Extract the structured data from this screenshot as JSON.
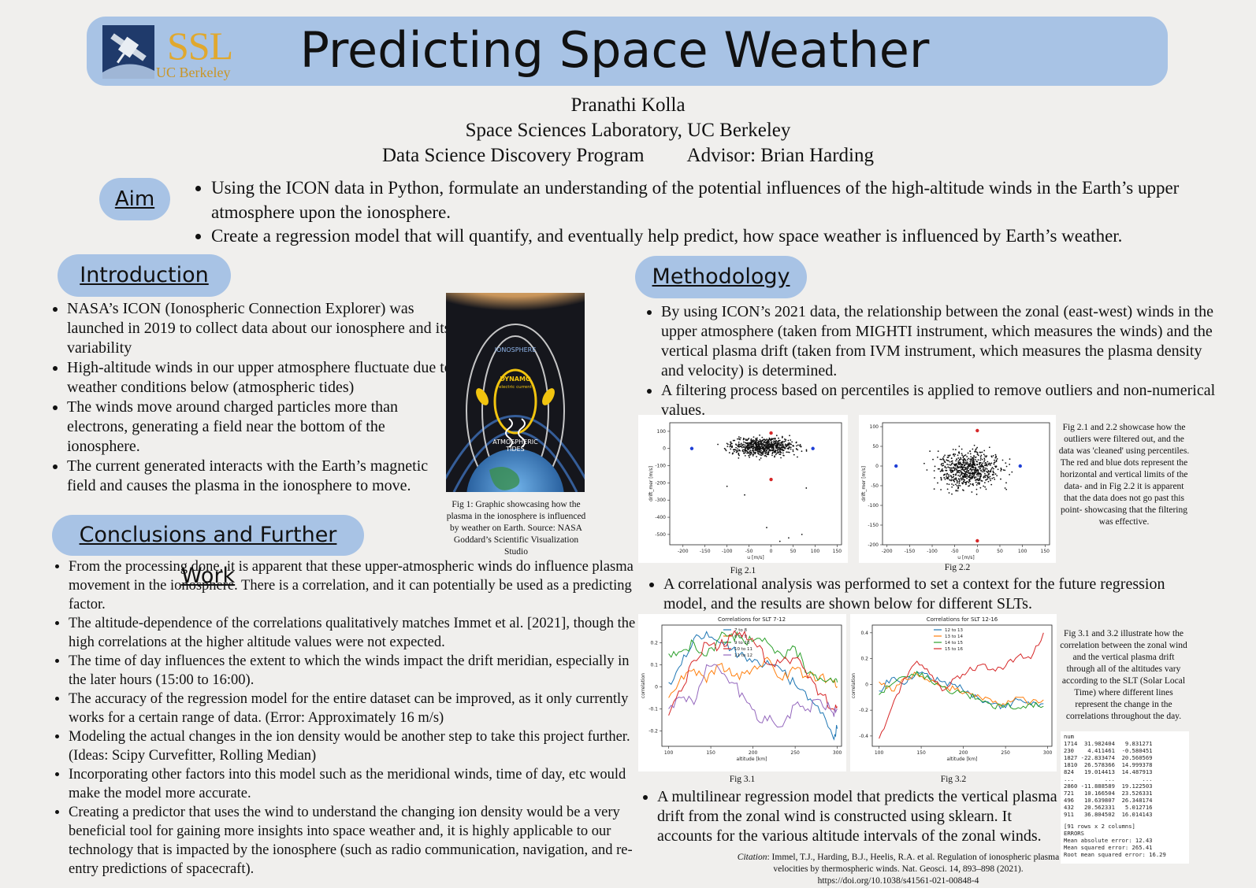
{
  "header": {
    "title": "Predicting Space Weather",
    "logo_ssl": "SSL",
    "logo_ucb": "UC Berkeley",
    "author": "Pranathi Kolla",
    "affiliation": "Space Sciences Laboratory, UC Berkeley",
    "program": "Data Science Discovery Program",
    "advisor": "Advisor: Brian Harding"
  },
  "aim": {
    "heading": "Aim",
    "items": [
      "Using the ICON data in Python, formulate an understanding of the potential influences of the high-altitude winds in the Earth’s upper atmosphere upon the ionosphere.",
      "Create a regression model that will quantify, and eventually help predict, how space weather is influenced by Earth’s weather."
    ]
  },
  "introduction": {
    "heading": "Introduction",
    "items": [
      "NASA’s ICON (Ionospheric Connection Explorer) was launched in 2019 to collect data about our ionosphere and its variability",
      "High-altitude winds in our upper atmosphere fluctuate due to weather conditions below (atmospheric tides)",
      "The winds move around charged particles more than electrons, generating a field near the bottom of the ionosphere.",
      "The current generated interacts with the Earth’s magnetic field and causes the plasma in the ionosphere to move."
    ],
    "figure_labels": [
      "IONOSPHERE",
      "DYNAMO",
      "electric current",
      "ATMOSPHERIC",
      "TIDES"
    ],
    "figure_caption": "Fig 1: Graphic showcasing how the plasma in the ionosphere is influenced by weather on Earth. Source: NASA Goddard’s Scientific Visualization Studio"
  },
  "conclusions": {
    "heading": "Conclusions and Further Work",
    "items": [
      "From the processing done, it is apparent that these upper-atmospheric winds do influence plasma movement in the ionosphere. There is a correlation, and it can potentially be used as a predicting factor.",
      "The altitude-dependence of the correlations qualitatively matches Immet et al. [2021], though the high correlations at the higher altitude values were not expected.",
      "The time of day influences the extent to which the winds impact the drift meridian, especially in the later hours (15:00 to 16:00).",
      "The accuracy of the regression model for the entire dataset can be improved, as it only currently works for a certain range of data. (Error: Approximately 16 m/s)",
      "Modeling the actual changes in the ion density would be another step to take this project further. (Ideas: Scipy Curvefitter, Rolling Median)",
      "Incorporating other factors into this model such as the meridional winds, time of day, etc would make the model more accurate.",
      "Creating a predictor that uses the wind to understand the changing ion density would be a very beneficial tool for gaining more insights into space weather and, it is highly applicable to our technology that is impacted by the ionosphere (such as radio communication, navigation, and re-entry predictions of spacecraft)."
    ]
  },
  "methodology": {
    "heading": "Methodology",
    "items1": [
      "By using ICON’s 2021 data, the relationship between the zonal (east-west) winds in the upper atmosphere (taken from MIGHTI instrument, which measures the winds) and the vertical plasma drift (taken from IVM instrument, which measures the plasma density and velocity) is determined.",
      "A filtering process based on percentiles is applied to remove outliers and non-numerical values."
    ],
    "fig21_caption": "Fig 2.1",
    "fig22_caption": "Fig 2.2",
    "fig2_note": "Fig 2.1 and 2.2 showcase how the outliers were filtered out, and the data was 'cleaned' using percentiles. The red and blue dots represent the horizontal and vertical limits of the data- and in Fig 2.2 it is apparent that the data does not go past this point- showcasing that the filtering was effective.",
    "item2": "A correlational analysis was performed to set a context for the future regression model, and the results are shown below for different SLTs.",
    "fig31_caption": "Fig 3.1",
    "fig32_caption": "Fig 3.2",
    "fig3_note": "Fig 3.1 and 3.2 illustrate how the correlation between the zonal wind and the vertical plasma drift through all of the altitudes vary according to the SLT (Solar Local Time) where different lines represent the change in the correlations throughout the day.",
    "item3": "A multilinear regression model that predicts the vertical plasma drift from the zonal wind is constructed using sklearn. It accounts for the various altitude intervals of the zonal winds.",
    "table_header": "num",
    "table_rows": [
      "1714  31.982404   9.831271",
      "230    4.411461  -0.580451",
      "1827 -22.833474  20.560569",
      "1810  26.578366  14.999378",
      "824   19.014413  14.487913",
      "...         ...        ...",
      "2860 -11.888589  19.122503",
      "721   10.166504  23.526331",
      "496   10.639807  26.348174",
      "432   20.562331   5.012716",
      "911   36.804502  16.014143"
    ],
    "table_shape": "[91 rows x 2 columns]",
    "errors_label": "ERRORS",
    "errors": [
      "Mean absolute error: 12.43",
      "Mean squared error: 265.41",
      "Root mean squared error: 16.29"
    ]
  },
  "citation": {
    "label": "Citation",
    "text": ":  Immel, T.J., Harding, B.J., Heelis, R.A. et al. Regulation of ionospheric plasma velocities by thermospheric winds. Nat. Geosci. 14, 893–898 (2021).",
    "doi": "https://doi.org/10.1038/s41561-021-00848-4"
  },
  "chart_data": [
    {
      "id": "fig2.1",
      "type": "scatter",
      "title": "",
      "xlabel": "u [m/s]",
      "ylabel": "drift_mer [m/s]",
      "xlim": [
        -230,
        160
      ],
      "ylim": [
        -560,
        150
      ],
      "xticks": [
        -200,
        -150,
        -100,
        -50,
        0,
        50,
        100,
        150
      ],
      "yticks": [
        100,
        0,
        -100,
        -200,
        -300,
        -400,
        -500
      ],
      "cloud": {
        "x_center": -20,
        "x_spread": 70,
        "y_center": 10,
        "y_spread": 50,
        "count": 700
      },
      "outliers_sparse": [
        [
          -60,
          -270
        ],
        [
          -10,
          -460
        ],
        [
          20,
          -540
        ],
        [
          40,
          -520
        ],
        [
          70,
          -500
        ],
        [
          -100,
          -220
        ],
        [
          80,
          -230
        ]
      ],
      "red_points": [
        [
          0,
          90
        ],
        [
          0,
          -180
        ]
      ],
      "blue_points": [
        [
          -180,
          0
        ],
        [
          95,
          0
        ]
      ]
    },
    {
      "id": "fig2.2",
      "type": "scatter",
      "title": "",
      "xlabel": "u [m/s]",
      "ylabel": "drift_mer [m/s]",
      "xlim": [
        -210,
        160
      ],
      "ylim": [
        -200,
        110
      ],
      "xticks": [
        -200,
        -150,
        -100,
        -50,
        0,
        50,
        100,
        150
      ],
      "yticks": [
        100,
        50,
        0,
        -50,
        -100,
        -150,
        -200
      ],
      "cloud": {
        "x_center": -20,
        "x_spread": 65,
        "y_center": -10,
        "y_spread": 45,
        "count": 700
      },
      "red_points": [
        [
          0,
          90
        ],
        [
          0,
          -190
        ]
      ],
      "blue_points": [
        [
          -180,
          0
        ],
        [
          95,
          0
        ]
      ]
    },
    {
      "id": "fig3.1",
      "type": "line",
      "title": "Correlations for SLT 7-12",
      "xlabel": "altitude [km]",
      "ylabel": "correlation",
      "xlim": [
        92,
        305
      ],
      "ylim": [
        -0.27,
        0.28
      ],
      "xticks": [
        100,
        150,
        200,
        250,
        300
      ],
      "yticks": [
        -0.2,
        -0.1,
        0.0,
        0.1,
        0.2
      ],
      "x": [
        100,
        115,
        130,
        145,
        160,
        175,
        190,
        205,
        220,
        235,
        250,
        265,
        280,
        295,
        300
      ],
      "series": [
        {
          "name": "7 to 8",
          "color": "#1f77b4",
          "values": [
            0.02,
            0.1,
            0.22,
            0.25,
            0.2,
            0.17,
            0.14,
            0.12,
            0.1,
            0.07,
            0.01,
            -0.06,
            -0.12,
            -0.23,
            -0.19
          ]
        },
        {
          "name": "8 to 9",
          "color": "#ff7f0e",
          "values": [
            -0.05,
            0.05,
            0.08,
            0.02,
            0.1,
            0.05,
            0.06,
            0.08,
            0.12,
            0.03,
            0.08,
            0.04,
            0.05,
            0.02,
            0.0
          ]
        },
        {
          "name": "9 to 10",
          "color": "#2ca02c",
          "values": [
            0.15,
            0.16,
            0.2,
            0.14,
            0.22,
            0.24,
            0.2,
            0.22,
            0.19,
            0.14,
            0.18,
            0.06,
            0.04,
            0.02,
            0.02
          ]
        },
        {
          "name": "10 to 11",
          "color": "#d62728",
          "values": [
            -0.13,
            -0.02,
            0.12,
            0.2,
            0.18,
            0.23,
            0.25,
            0.18,
            0.1,
            0.12,
            0.13,
            0.04,
            -0.03,
            -0.1,
            -0.09
          ]
        },
        {
          "name": "11 to 12",
          "color": "#9467bd",
          "values": [
            -0.1,
            -0.05,
            -0.08,
            0.1,
            0.08,
            0.02,
            -0.05,
            -0.15,
            -0.13,
            -0.18,
            -0.08,
            -0.1,
            -0.06,
            -0.12,
            -0.1
          ]
        }
      ]
    },
    {
      "id": "fig3.2",
      "type": "line",
      "title": "Correlations for SLT 12-16",
      "xlabel": "altitude [km]",
      "ylabel": "correlation",
      "xlim": [
        92,
        305
      ],
      "ylim": [
        -0.48,
        0.46
      ],
      "xticks": [
        100,
        150,
        200,
        250,
        300
      ],
      "yticks": [
        -0.4,
        -0.2,
        0.0,
        0.2,
        0.4
      ],
      "x": [
        100,
        115,
        130,
        145,
        160,
        175,
        190,
        205,
        220,
        235,
        250,
        265,
        280,
        295
      ],
      "series": [
        {
          "name": "12 to 13",
          "color": "#1f77b4",
          "values": [
            -0.05,
            0.05,
            0.0,
            0.1,
            0.05,
            0.02,
            0.0,
            -0.05,
            -0.12,
            -0.15,
            -0.18,
            -0.12,
            -0.16,
            -0.15
          ]
        },
        {
          "name": "13 to 14",
          "color": "#ff7f0e",
          "values": [
            0.02,
            -0.05,
            0.05,
            0.08,
            0.02,
            -0.02,
            -0.04,
            -0.06,
            -0.1,
            -0.14,
            -0.16,
            -0.1,
            -0.14,
            -0.12
          ]
        },
        {
          "name": "14 to 15",
          "color": "#2ca02c",
          "values": [
            -0.08,
            0.0,
            0.06,
            0.1,
            0.04,
            -0.02,
            -0.06,
            -0.08,
            -0.12,
            -0.18,
            -0.16,
            -0.18,
            -0.15,
            -0.17
          ]
        },
        {
          "name": "15 to 16",
          "color": "#d62728",
          "values": [
            -0.42,
            -0.18,
            0.05,
            0.18,
            0.08,
            -0.05,
            0.05,
            0.1,
            0.15,
            0.12,
            0.14,
            0.22,
            0.2,
            0.4
          ]
        }
      ]
    }
  ]
}
